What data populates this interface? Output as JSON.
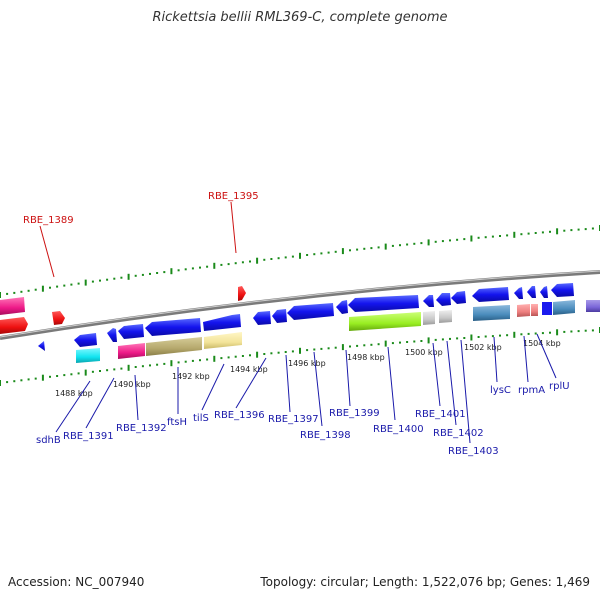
{
  "title": "Rickettsia bellii RML369-C, complete genome",
  "footer": {
    "accession": "Accession: NC_007940",
    "summary": "Topology: circular; Length: 1,522,076 bp; Genes: 1,469"
  },
  "colors": {
    "backbone": "#888888",
    "forward_track_tick": "#1a8a1a",
    "gene_blue": "#1a1aee",
    "label_blue": "#1a1aaa",
    "label_red": "#cc1111"
  },
  "kbp_ticks": [
    "1488 kbp",
    "1490 kbp",
    "1492 kbp",
    "1494 kbp",
    "1496 kbp",
    "1498 kbp",
    "1500 kbp",
    "1502 kbp",
    "1504 kbp"
  ],
  "top_labels": [
    "RBE_1389",
    "RBE_1395"
  ],
  "bottom_labels": [
    "sdhB",
    "RBE_1391",
    "RBE_1392",
    "ftsH",
    "tilS",
    "RBE_1396",
    "RBE_1397",
    "RBE_1398",
    "RBE_1399",
    "RBE_1400",
    "RBE_1401",
    "RBE_1402",
    "RBE_1403",
    "lysC",
    "rpmA",
    "rplU"
  ]
}
